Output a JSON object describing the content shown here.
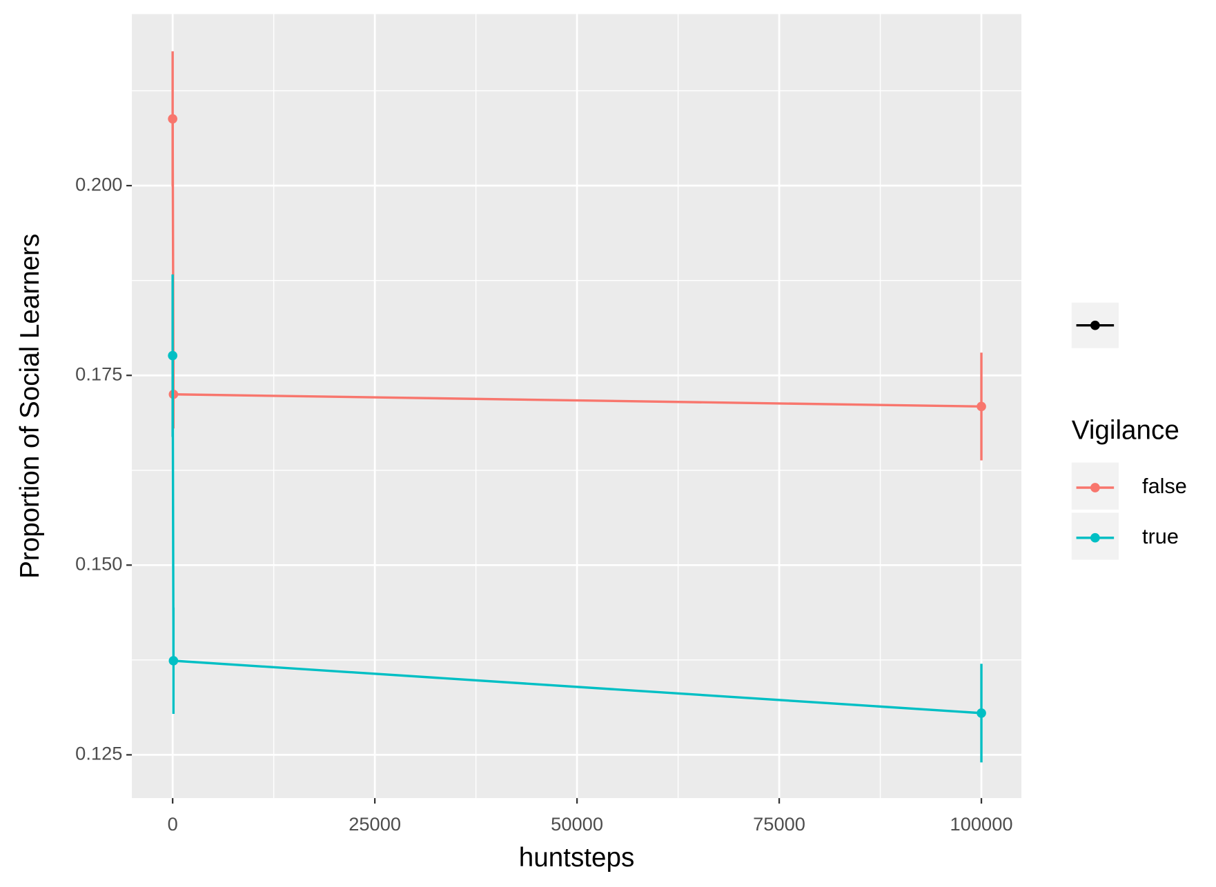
{
  "chart_data": {
    "type": "line",
    "x_label": "huntsteps",
    "y_label": "Proportion of Social Learners",
    "legend_title": "Vigilance",
    "legend_position": "right",
    "x": [
      0,
      100,
      100000
    ],
    "series": [
      {
        "name": "false",
        "color": "#F8766D",
        "values": [
          0.2088,
          0.1725,
          0.1709
        ],
        "errors": [
          0.0089,
          0.0045,
          0.0071
        ]
      },
      {
        "name": "true",
        "color": "#00BFC4",
        "values": [
          0.1776,
          0.1374,
          0.1305
        ],
        "errors": [
          0.0107,
          0.007,
          0.0065
        ]
      }
    ],
    "xlim": [
      -5044,
      104947
    ],
    "ylim": [
      0.1193,
      0.2226
    ],
    "xticks": [
      0,
      25000,
      50000,
      75000,
      100000
    ],
    "yticks": [
      {
        "value": 0.125,
        "label": "0.125"
      },
      {
        "value": 0.15,
        "label": "0.150"
      },
      {
        "value": 0.175,
        "label": "0.175"
      },
      {
        "value": 0.2,
        "label": "0.200"
      }
    ],
    "grid": true
  }
}
